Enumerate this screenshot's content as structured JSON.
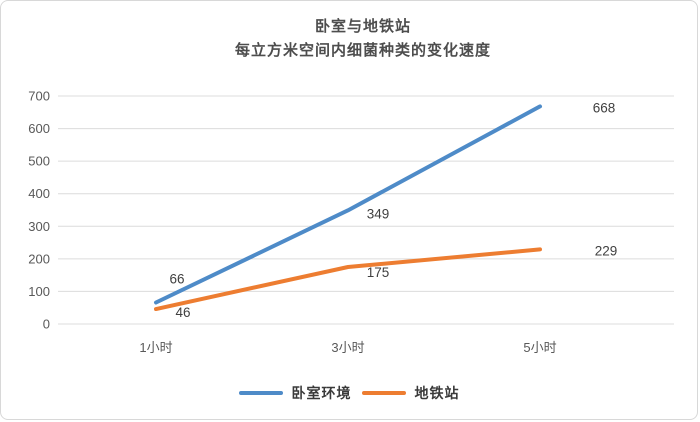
{
  "chart_data": {
    "type": "line",
    "title": "卧室与地铁站",
    "subtitle": "每立方米空间内细菌种类的变化速度",
    "categories": [
      "1小时",
      "3小时",
      "5小时"
    ],
    "series": [
      {
        "name": "卧室环境",
        "color": "#4e8bc8",
        "values": [
          66,
          349,
          668
        ]
      },
      {
        "name": "地铁站",
        "color": "#ed7d31",
        "values": [
          46,
          175,
          229
        ]
      }
    ],
    "ylim": [
      0,
      700
    ],
    "ytick_step": 100,
    "ytick_labels": [
      "0",
      "100",
      "200",
      "300",
      "400",
      "500",
      "600",
      "700"
    ],
    "grid": true,
    "gridline_color": "#dcdcdc",
    "axis_text_color": "#595959",
    "data_label_color": "#404040",
    "legend_position": "bottom",
    "data_labels_shown": [
      "66",
      "349",
      "668",
      "46",
      "175",
      "229"
    ]
  }
}
